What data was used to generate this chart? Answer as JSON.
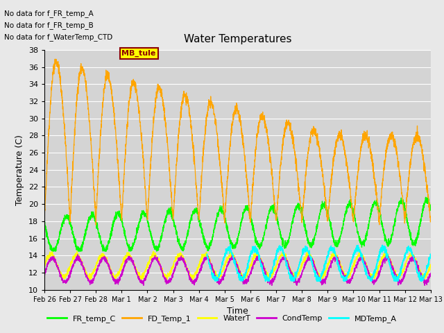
{
  "title": "Water Temperatures",
  "ylabel": "Temperature (C)",
  "xlabel": "Time",
  "ylim": [
    10,
    38
  ],
  "annotations": [
    "No data for f_FR_temp_A",
    "No data for f_FR_temp_B",
    "No data for f_WaterTemp_CTD"
  ],
  "mb_tule_label": "MB_tule",
  "legend_entries": [
    "FR_temp_C",
    "FD_Temp_1",
    "WaterT",
    "CondTemp",
    "MDTemp_A"
  ],
  "line_colors": [
    "#00ff00",
    "#ffa500",
    "#ffff00",
    "#cc00cc",
    "#00ffff"
  ],
  "fig_facecolor": "#e8e8e8",
  "ax_facecolor": "#d4d4d4",
  "xtick_labels": [
    "Feb 26",
    "Feb 27",
    "Feb 28",
    "Mar 1",
    "Mar 2",
    "Mar 3",
    "Mar 4",
    "Mar 5",
    "Mar 6",
    "Mar 7",
    "Mar 8",
    "Mar 9",
    "Mar 10",
    "Mar 11",
    "Mar 12",
    "Mar 13"
  ],
  "yticks": [
    10,
    12,
    14,
    16,
    18,
    20,
    22,
    24,
    26,
    28,
    30,
    32,
    34,
    36,
    38
  ]
}
